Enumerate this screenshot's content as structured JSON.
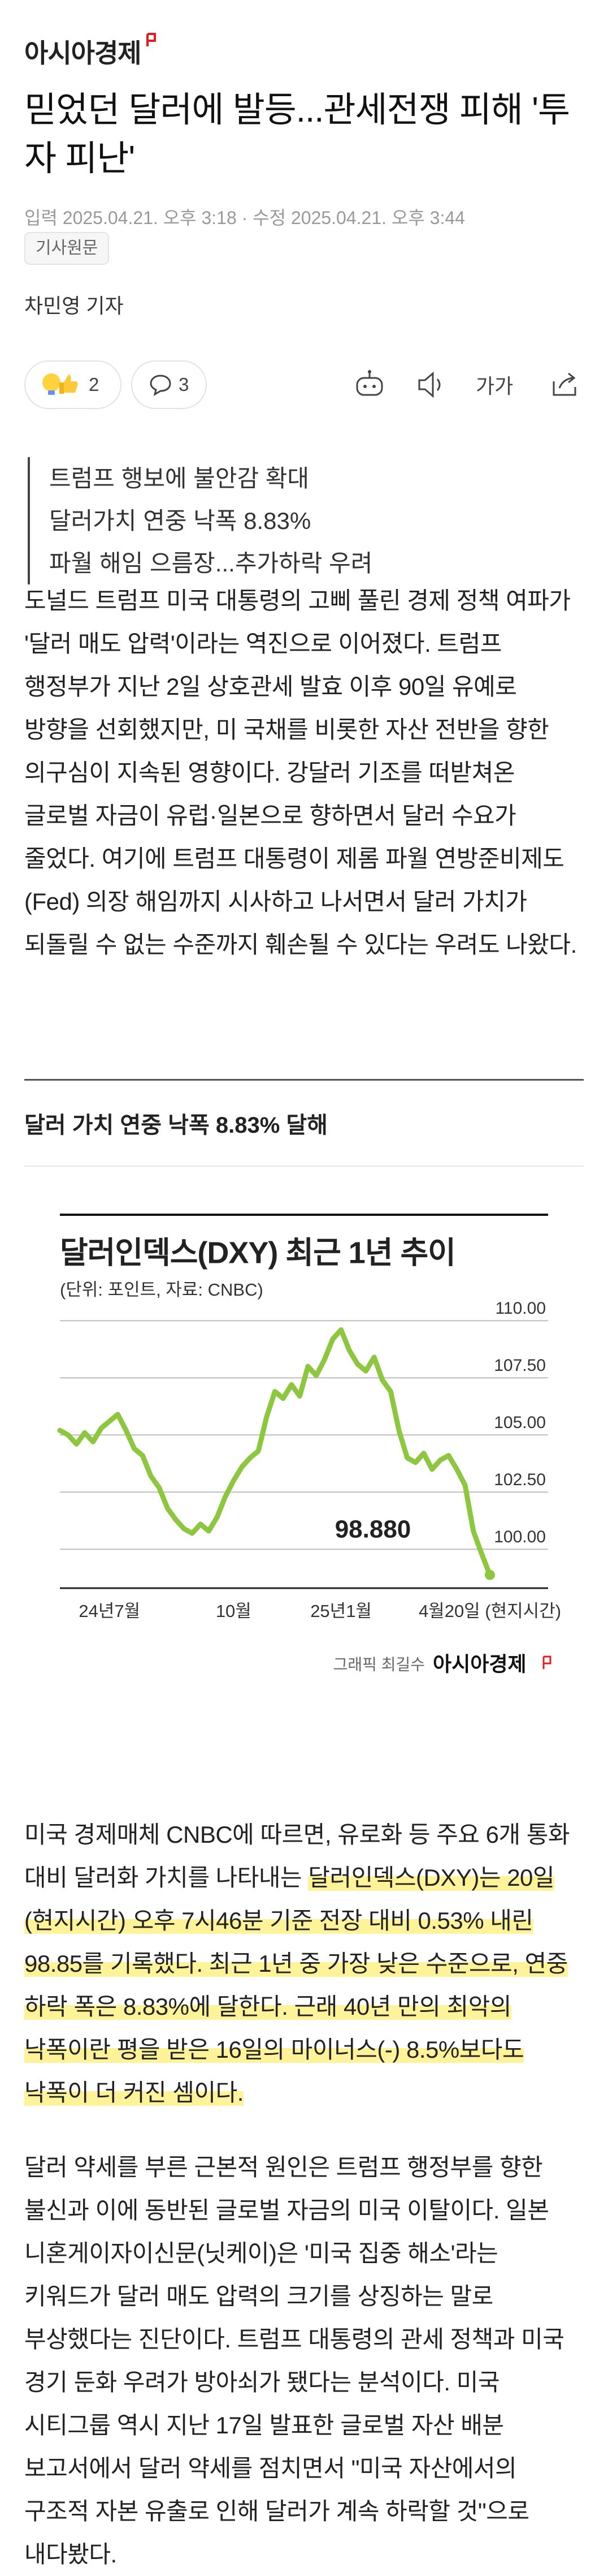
{
  "header": {
    "logo": "아시아경제"
  },
  "article": {
    "title": "믿었던 달러에 발등...관세전쟁 피해 '투자 피난'",
    "published": "입력 2025.04.21. 오후 3:18",
    "modified": "수정 2025.04.21. 오후 3:44",
    "source_button": "기사원문",
    "reporter": "차민영 기자",
    "reactions": {
      "likes": 2,
      "comments": 3
    },
    "font_button": "가가"
  },
  "summary": [
    "트럼프 행보에 불안감 확대",
    "달러가치 연중 낙폭 8.83%",
    "파월 해임 으름장...추가하락 우려"
  ],
  "body": {
    "paragraph_1": "도널드 트럼프 미국 대통령의 고삐 풀린 경제 정책 여파가 '달러 매도 압력'이라는 역진으로 이어졌다. 트럼프 행정부가 지난 2일 상호관세 발효 이후 90일 유예로 방향을 선회했지만, 미 국채를 비롯한 자산 전반을 향한 의구심이 지속된 영향이다. 강달러 기조를 떠받쳐온 글로벌 자금이 유럽·일본으로 향하면서 달러 수요가 줄었다. 여기에 트럼프 대통령이 제롬 파월 연방준비제도(Fed) 의장 해임까지 시사하고 나서면서 달러 가치가 되돌릴 수 없는 수준까지 훼손될 수 있다는 우려도 나왔다.",
    "subheading": "달러 가치 연중 낙폭 8.83% 달해",
    "paragraph_2": {
      "text": "미국 경제매체 CNBC에 따르면, 유로화 등 주요 6개 통화 대비 달러화 가치를 나타내는 ",
      "highlighted": "달러인덱스(DXY)는 20일(현지시간) 오후 7시46분 기준 전장 대비 0.53% 내린 98.85를 기록했다. 최근 1년 중 가장 낮은 수준으로, 연중 하락 폭은 8.83%에 달한다. 근래 40년 만의 최악의 낙폭이란 평을 받은 16일의 마이너스(-) 8.5%보다도 낙폭이 더 커진 셈이다."
    },
    "paragraph_3": "달러 약세를 부른 근본적 원인은 트럼프 행정부를 향한 불신과 이에 동반된 글로벌 자금의 미국 이탈이다. 일본 니혼게이자이신문(닛케이)은 '미국 집중 해소'라는 키워드가 달러 매도 압력의 크기를 상징하는 말로 부상했다는 진단이다. 트럼프 대통령의 관세 정책과 미국 경기 둔화 우려가 방아쇠가 됐다는 분석이다. 미국 시티그룹 역시 지난 17일 발표한 글로벌 자산 배분 보고서에서 달러 약세를 점치면서 \"미국 자산에서의 구조적 자본 유출로 인해 달러가 계속 하락할 것\"으로 내다봤다."
  },
  "figure": {
    "type": "line",
    "title": "달러인덱스(DXY) 최근 1년 추이",
    "subtitle": "(단위: 포인트, 자료: CNBC)",
    "color": "#8dc63f",
    "categories": [
      null,
      null,
      null,
      null,
      null,
      null,
      "24년7월",
      null,
      null,
      null,
      null,
      null,
      null,
      null,
      null,
      null,
      null,
      null,
      null,
      null,
      null,
      "10월",
      null,
      null,
      null,
      null,
      null,
      null,
      null,
      null,
      null,
      null,
      null,
      null,
      "25년1월",
      null,
      null,
      null,
      null,
      null,
      null,
      null,
      null,
      null,
      null,
      null,
      null,
      null,
      null,
      null,
      null,
      null,
      "4월20일 (현지시간)"
    ],
    "values": [
      105.2,
      105.0,
      104.6,
      105.1,
      104.7,
      105.3,
      105.6,
      105.9,
      105.2,
      104.4,
      104.1,
      103.2,
      102.7,
      101.8,
      101.3,
      100.9,
      100.7,
      101.1,
      100.8,
      101.4,
      102.3,
      103.0,
      103.6,
      104.0,
      104.3,
      105.8,
      106.9,
      106.6,
      107.2,
      106.7,
      108.0,
      107.6,
      108.3,
      109.2,
      109.6,
      108.7,
      108.1,
      107.8,
      108.4,
      107.4,
      106.9,
      105.2,
      104.0,
      103.8,
      104.2,
      103.5,
      103.9,
      104.1,
      103.5,
      102.8,
      100.8,
      99.8,
      98.88
    ],
    "annotation": "98.880",
    "ylim": [
      98.3,
      110.6
    ],
    "yticks": [
      {
        "value": 110,
        "label": "110.00"
      },
      {
        "value": 107.5,
        "label": "107.50"
      },
      {
        "value": 105,
        "label": "105.00"
      },
      {
        "value": 102.5,
        "label": "102.50"
      },
      {
        "value": 100,
        "label": "100.00"
      }
    ],
    "grid": true,
    "credit": "그래픽 최길수",
    "credit_brand": "아시아경제"
  }
}
